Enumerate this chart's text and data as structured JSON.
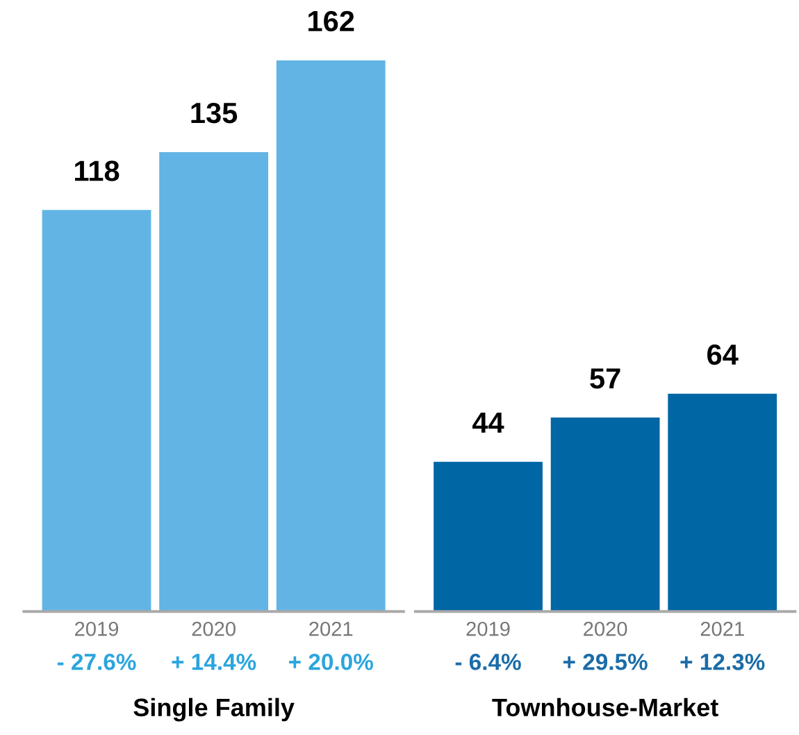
{
  "chart_data": [
    {
      "type": "bar",
      "xlabel": "Single Family",
      "categories": [
        "2019",
        "2020",
        "2021"
      ],
      "values": [
        118,
        135,
        162
      ],
      "color": "#62b4e5",
      "data_labels": true,
      "grid": false,
      "legend": false,
      "annotations": [
        "- 27.6%",
        "+ 14.4%",
        "+ 20.0%"
      ]
    },
    {
      "type": "bar",
      "xlabel": "Townhouse-Market",
      "categories": [
        "2019",
        "2020",
        "2021"
      ],
      "values": [
        44,
        57,
        64
      ],
      "color": "#0066a4",
      "data_labels": true,
      "grid": false,
      "legend": false,
      "annotations": [
        "- 6.4%",
        "+ 29.5%",
        "+ 12.3%"
      ]
    }
  ]
}
